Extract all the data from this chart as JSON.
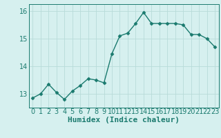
{
  "x": [
    0,
    1,
    2,
    3,
    4,
    5,
    6,
    7,
    8,
    9,
    10,
    11,
    12,
    13,
    14,
    15,
    16,
    17,
    18,
    19,
    20,
    21,
    22,
    23
  ],
  "y": [
    12.85,
    13.0,
    13.35,
    13.05,
    12.8,
    13.1,
    13.3,
    13.55,
    13.5,
    13.4,
    14.45,
    15.1,
    15.2,
    15.55,
    15.95,
    15.55,
    15.55,
    15.55,
    15.55,
    15.5,
    15.15,
    15.15,
    15.0,
    14.7
  ],
  "line_color": "#1a7a6e",
  "marker": "D",
  "marker_size": 2.5,
  "bg_color": "#d6f0ef",
  "grid_color": "#b8dbd9",
  "tick_color": "#1a7a6e",
  "xlabel": "Humidex (Indice chaleur)",
  "xlabel_fontsize": 8,
  "ylim": [
    12.5,
    16.25
  ],
  "yticks": [
    13,
    14,
    15,
    16
  ],
  "xticks": [
    0,
    1,
    2,
    3,
    4,
    5,
    6,
    7,
    8,
    9,
    10,
    11,
    12,
    13,
    14,
    15,
    16,
    17,
    18,
    19,
    20,
    21,
    22,
    23
  ],
  "tick_fontsize": 7,
  "line_width": 1.0
}
